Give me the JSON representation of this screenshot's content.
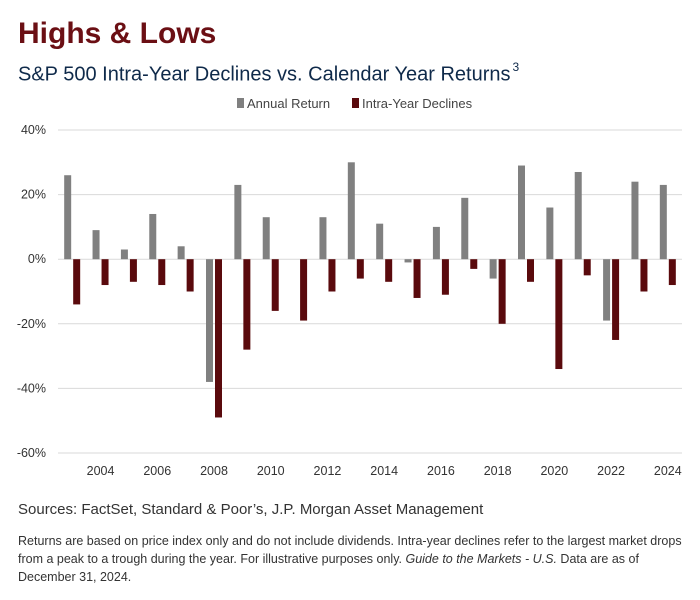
{
  "header": {
    "title": "Highs & Lows",
    "subtitle": "S&P 500 Intra-Year Declines vs. Calendar Year Returns",
    "subtitle_sup": "3"
  },
  "footer": {
    "sources": "Sources: FactSet, Standard & Poor’s, J.P. Morgan Asset Management",
    "note_part1": "Returns are based on price index only and do not include dividends. Intra-year declines refer to the largest market drops from a peak to a trough during the year. For illustrative purposes only. ",
    "note_italic": "Guide to the Markets - U.S.",
    "note_part2": " Data are as of December 31, 2024."
  },
  "colors": {
    "annual": "#808080",
    "declines": "#5a0a0d",
    "gridline": "#d9d9d9"
  },
  "chart_data": {
    "type": "bar",
    "categories": [
      2003,
      2004,
      2005,
      2006,
      2007,
      2008,
      2009,
      2010,
      2011,
      2012,
      2013,
      2014,
      2015,
      2016,
      2017,
      2018,
      2019,
      2020,
      2021,
      2022,
      2023,
      2024
    ],
    "series": [
      {
        "name": "Annual Return",
        "values": [
          26,
          9,
          3,
          14,
          4,
          -38,
          23,
          13,
          0,
          13,
          30,
          11,
          -1,
          10,
          19,
          -6,
          29,
          16,
          27,
          -19,
          24,
          23
        ]
      },
      {
        "name": "Intra-Year Declines",
        "values": [
          -14,
          -8,
          -7,
          -8,
          -10,
          -49,
          -28,
          -16,
          -19,
          -10,
          -6,
          -7,
          -12,
          -11,
          -3,
          -20,
          -7,
          -34,
          -5,
          -25,
          -10,
          -8
        ]
      }
    ],
    "ylim": [
      -60,
      40
    ],
    "yticks": [
      -60,
      -40,
      -20,
      0,
      20,
      40
    ],
    "ytick_labels": [
      "-60%",
      "-40%",
      "-20%",
      "0%",
      "20%",
      "40%"
    ],
    "xtick_labels": [
      "2004",
      "2006",
      "2008",
      "2010",
      "2012",
      "2014",
      "2016",
      "2018",
      "2020",
      "2022",
      "2024"
    ],
    "grid": true,
    "legend": "top-center"
  }
}
